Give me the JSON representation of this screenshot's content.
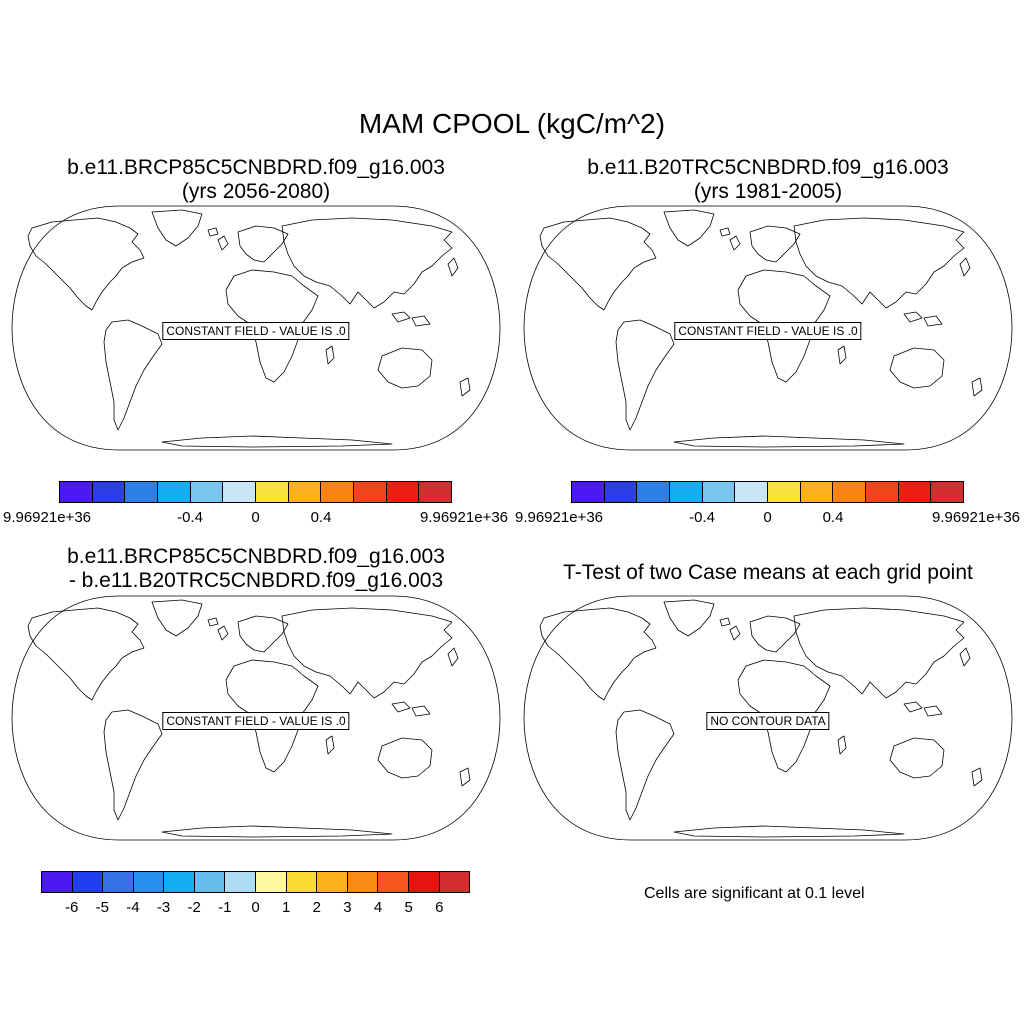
{
  "title": "MAM CPOOL (kgC/m^2)",
  "panels": [
    {
      "title_line1": "b.e11.BRCP85C5CNBDRD.f09_g16.003",
      "title_line2": "(yrs 2056-2080)",
      "map_label": "CONSTANT FIELD - VALUE IS .0",
      "colorbar": {
        "colors": [
          "#4a1af0",
          "#2e3ee6",
          "#2d7fe8",
          "#13aef0",
          "#78c6ee",
          "#c8e6f4",
          "#fae23a",
          "#fbb21a",
          "#fa8412",
          "#f0451a",
          "#ee1f12",
          "#d22e2e"
        ],
        "labels": [
          "9.96921e+36",
          "-0.4",
          "0",
          "0.4",
          "9.96921e+36"
        ]
      }
    },
    {
      "title_line1": "b.e11.B20TRC5CNBDRD.f09_g16.003",
      "title_line2": "(yrs 1981-2005)",
      "map_label": "CONSTANT FIELD - VALUE IS .0",
      "colorbar": {
        "colors": [
          "#4a1af0",
          "#2e3ee6",
          "#2d7fe8",
          "#13aef0",
          "#78c6ee",
          "#c8e6f4",
          "#fae23a",
          "#fbb21a",
          "#fa8412",
          "#f0451a",
          "#ee1f12",
          "#d22e2e"
        ],
        "labels": [
          "9.96921e+36",
          "-0.4",
          "0",
          "0.4",
          "9.96921e+36"
        ]
      }
    },
    {
      "title_line1": "b.e11.BRCP85C5CNBDRD.f09_g16.003",
      "title_line2": "- b.e11.B20TRC5CNBDRD.f09_g16.003",
      "map_label": "CONSTANT FIELD - VALUE IS .0",
      "colorbar": {
        "colors": [
          "#4a1af0",
          "#1f3ff0",
          "#3672e6",
          "#2a90f0",
          "#13aef0",
          "#66bdea",
          "#acdcf2",
          "#fdf7a2",
          "#fad932",
          "#fbb21a",
          "#fa8a14",
          "#f7551c",
          "#e6140e",
          "#d22e2e"
        ],
        "labels": [
          "-6",
          "-5",
          "-4",
          "-3",
          "-2",
          "-1",
          "0",
          "1",
          "2",
          "3",
          "4",
          "5",
          "6"
        ]
      }
    },
    {
      "title_line1": "T-Test of two Case means at each grid point",
      "map_label": "NO CONTOUR DATA",
      "note": "Cells are significant at 0.1 level"
    }
  ]
}
